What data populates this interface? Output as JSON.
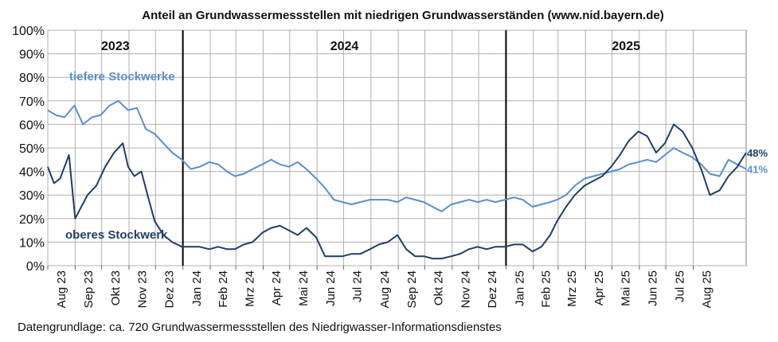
{
  "chart_data": {
    "type": "line",
    "title": "Anteil an Grundwassermessstellen mit niedrigen Grundwasserständen (www.nid.bayern.de)",
    "source_note": "Datengrundlage: ca. 720 Grundwassermessstellen des Niedrigwasser-Informationsdienstes",
    "ylim": [
      0,
      100
    ],
    "y_ticks": [
      "0%",
      "10%",
      "20%",
      "30%",
      "40%",
      "50%",
      "60%",
      "70%",
      "80%",
      "90%",
      "100%"
    ],
    "x_range": [
      "2023-08-01",
      "2025-09-30"
    ],
    "x_ticks": [
      "Aug 23",
      "Sep 23",
      "Okt 23",
      "Nov 23",
      "Dez 23",
      "Jan 24",
      "Feb 24",
      "Mrz 24",
      "Apr 24",
      "Mai 24",
      "Jun 24",
      "Jul 24",
      "Aug 24",
      "Sep 24",
      "Okt 24",
      "Nov 24",
      "Dez 24",
      "Jan 25",
      "Feb 25",
      "Mrz 25",
      "Apr 25",
      "Mai 25",
      "Jun 25",
      "Jul 25",
      "Aug 25"
    ],
    "years": [
      "2023",
      "2024",
      "2025"
    ],
    "grid": true,
    "series": [
      {
        "name": "tiefere Stockwerke",
        "color": "#5b8fcc",
        "end_label": "41%",
        "x": [
          "2023-08-01",
          "2023-08-10",
          "2023-08-20",
          "2023-08-31",
          "2023-09-10",
          "2023-09-20",
          "2023-09-30",
          "2023-10-10",
          "2023-10-20",
          "2023-10-31",
          "2023-11-10",
          "2023-11-20",
          "2023-11-30",
          "2023-12-10",
          "2023-12-20",
          "2023-12-31",
          "2024-01-10",
          "2024-01-20",
          "2024-01-31",
          "2024-02-10",
          "2024-02-20",
          "2024-02-29",
          "2024-03-10",
          "2024-03-20",
          "2024-03-31",
          "2024-04-10",
          "2024-04-20",
          "2024-04-30",
          "2024-05-10",
          "2024-05-20",
          "2024-05-31",
          "2024-06-10",
          "2024-06-20",
          "2024-06-30",
          "2024-07-10",
          "2024-07-20",
          "2024-07-31",
          "2024-08-10",
          "2024-08-20",
          "2024-08-31",
          "2024-09-10",
          "2024-09-20",
          "2024-09-30",
          "2024-10-10",
          "2024-10-20",
          "2024-10-31",
          "2024-11-10",
          "2024-11-20",
          "2024-11-30",
          "2024-12-10",
          "2024-12-20",
          "2024-12-31",
          "2025-01-10",
          "2025-01-20",
          "2025-01-31",
          "2025-02-10",
          "2025-02-20",
          "2025-02-28",
          "2025-03-10",
          "2025-03-20",
          "2025-03-31",
          "2025-04-10",
          "2025-04-20",
          "2025-04-30",
          "2025-05-10",
          "2025-05-20",
          "2025-05-31",
          "2025-06-10",
          "2025-06-20",
          "2025-06-30",
          "2025-07-10",
          "2025-07-20",
          "2025-07-31",
          "2025-08-10",
          "2025-08-20",
          "2025-08-31",
          "2025-09-10",
          "2025-09-20",
          "2025-09-30"
        ],
        "y": [
          66,
          64,
          63,
          68,
          60,
          63,
          64,
          68,
          70,
          66,
          67,
          58,
          56,
          52,
          48,
          45,
          41,
          42,
          44,
          43,
          40,
          38,
          39,
          41,
          43,
          45,
          43,
          42,
          44,
          41,
          37,
          33,
          28,
          27,
          26,
          27,
          28,
          28,
          28,
          27,
          29,
          28,
          27,
          25,
          23,
          26,
          27,
          28,
          27,
          28,
          27,
          28,
          29,
          28,
          25,
          26,
          27,
          28,
          30,
          34,
          37,
          38,
          39,
          40,
          41,
          43,
          44,
          45,
          44,
          47,
          50,
          48,
          46,
          43,
          39,
          38,
          45,
          43,
          41
        ]
      },
      {
        "name": "oberes Stockwerk",
        "color": "#1f3f66",
        "end_label": "48%",
        "x": [
          "2023-08-01",
          "2023-08-08",
          "2023-08-15",
          "2023-08-25",
          "2023-09-01",
          "2023-09-08",
          "2023-09-15",
          "2023-09-25",
          "2023-10-05",
          "2023-10-15",
          "2023-10-25",
          "2023-10-31",
          "2023-11-07",
          "2023-11-15",
          "2023-11-22",
          "2023-11-30",
          "2023-12-10",
          "2023-12-20",
          "2023-12-31",
          "2024-01-10",
          "2024-01-20",
          "2024-01-31",
          "2024-02-10",
          "2024-02-20",
          "2024-02-29",
          "2024-03-10",
          "2024-03-20",
          "2024-03-31",
          "2024-04-10",
          "2024-04-20",
          "2024-04-30",
          "2024-05-10",
          "2024-05-20",
          "2024-05-31",
          "2024-06-10",
          "2024-06-20",
          "2024-06-30",
          "2024-07-10",
          "2024-07-20",
          "2024-07-31",
          "2024-08-10",
          "2024-08-20",
          "2024-08-31",
          "2024-09-10",
          "2024-09-20",
          "2024-09-30",
          "2024-10-10",
          "2024-10-20",
          "2024-10-31",
          "2024-11-10",
          "2024-11-20",
          "2024-11-30",
          "2024-12-10",
          "2024-12-20",
          "2024-12-31",
          "2025-01-10",
          "2025-01-20",
          "2025-01-31",
          "2025-02-10",
          "2025-02-20",
          "2025-02-28",
          "2025-03-10",
          "2025-03-20",
          "2025-03-31",
          "2025-04-10",
          "2025-04-20",
          "2025-04-30",
          "2025-05-10",
          "2025-05-20",
          "2025-05-31",
          "2025-06-10",
          "2025-06-20",
          "2025-06-30",
          "2025-07-10",
          "2025-07-20",
          "2025-07-31",
          "2025-08-10",
          "2025-08-20",
          "2025-08-31",
          "2025-09-10",
          "2025-09-20",
          "2025-09-30"
        ],
        "y": [
          42,
          35,
          37,
          47,
          20,
          25,
          30,
          34,
          42,
          48,
          52,
          42,
          38,
          40,
          30,
          19,
          13,
          10,
          8,
          8,
          8,
          7,
          8,
          7,
          7,
          9,
          10,
          14,
          16,
          17,
          15,
          13,
          16,
          12,
          4,
          4,
          4,
          5,
          5,
          7,
          9,
          10,
          13,
          7,
          4,
          4,
          3,
          3,
          4,
          5,
          7,
          8,
          7,
          8,
          8,
          9,
          9,
          6,
          8,
          13,
          19,
          25,
          30,
          34,
          36,
          38,
          42,
          47,
          53,
          57,
          55,
          48,
          52,
          60,
          57,
          50,
          41,
          30,
          32,
          38,
          42,
          48
        ]
      }
    ]
  }
}
